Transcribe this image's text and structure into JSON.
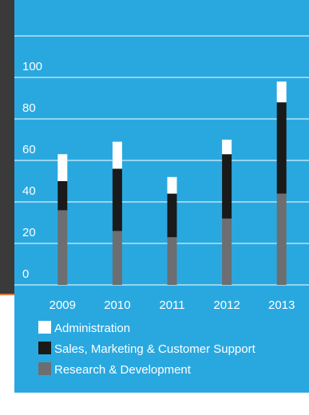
{
  "chart_data": {
    "type": "bar",
    "stacked": true,
    "categories": [
      "2009",
      "2010",
      "2011",
      "2012",
      "2013"
    ],
    "series": [
      {
        "name": "Research & Development",
        "color": "#6d6e71",
        "values": [
          36,
          26,
          23,
          32,
          44
        ]
      },
      {
        "name": "Sales, Marketing & Customer Support",
        "color": "#1a1a1a",
        "values": [
          14,
          30,
          21,
          31,
          44
        ]
      },
      {
        "name": "Administration",
        "color": "#ffffff",
        "values": [
          13,
          13,
          8,
          7,
          10
        ]
      }
    ],
    "ylim": [
      0,
      120
    ],
    "yticks": [
      0,
      20,
      40,
      60,
      80,
      100
    ],
    "grid": true
  }
}
